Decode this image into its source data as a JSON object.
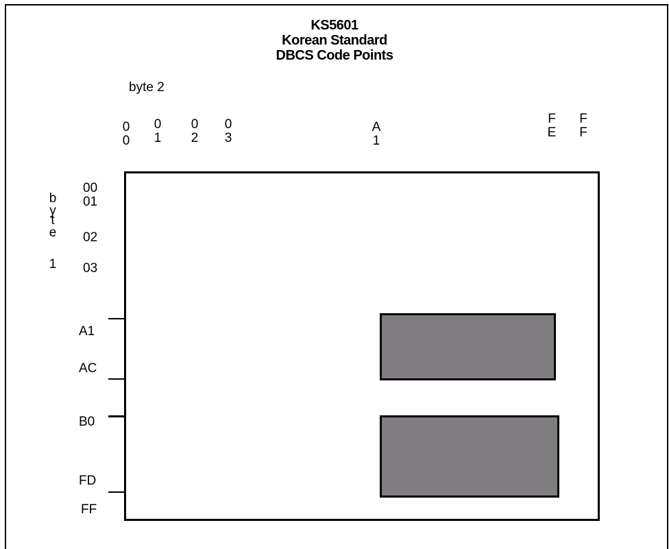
{
  "title": {
    "line1": "KS5601",
    "line2": "Korean Standard",
    "line3": "DBCS Code Points"
  },
  "axis": {
    "byte2_label": "byte 2",
    "byte1_label_chars": [
      "b",
      "y",
      "t",
      "e",
      "",
      "1"
    ]
  },
  "columns": [
    {
      "top": "0",
      "bottom": "0"
    },
    {
      "top": "0",
      "bottom": "1"
    },
    {
      "top": "0",
      "bottom": "2"
    },
    {
      "top": "0",
      "bottom": "3"
    },
    {
      "top": "A",
      "bottom": "1"
    },
    {
      "top": "F",
      "bottom": "E"
    },
    {
      "top": "F",
      "bottom": "F"
    }
  ],
  "rows": [
    "00",
    "01",
    "02",
    "03",
    "A1",
    "AC",
    "B0",
    "FD",
    "FF"
  ],
  "regions": [
    {
      "name": "region-a1-ac",
      "rows": "A1-AC",
      "cols": "A1-FE",
      "color": "#7f7d80"
    },
    {
      "name": "region-b0-fd",
      "rows": "B0-FD",
      "cols": "A1-FE",
      "color": "#7f7d80"
    }
  ]
}
